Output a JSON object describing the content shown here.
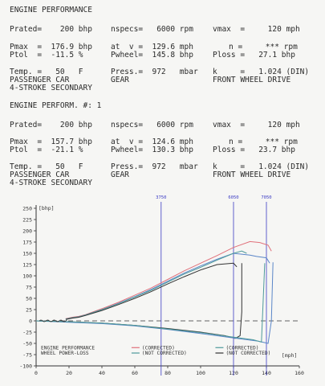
{
  "report1": {
    "title": "ENGINE PERFORMANCE",
    "rated": "Prated=    200 bhp",
    "nspecs": "nspecs=   6000 rpm",
    "vmax": "vmax  =     120 mph",
    "pmax": "Pmax  =  176.9 bhp",
    "ptol": "Ptol  =  -11.5 %",
    "at_v": "at  v =  129.6 mph",
    "pwheel": "Pwheel=  145.8 bhp",
    "n": "n =     *** rpm",
    "ploss": "Ploss =   27.1 bhp",
    "temp": "Temp. =   50   F",
    "car": "PASSENGER CAR",
    "stroke": "4-STROKE SECONDARY",
    "press": "Press.=  972   mbar",
    "gear": "GEAR",
    "k": "k     =   1.024 (DIN)",
    "drive": "FRONT WHEEL DRIVE"
  },
  "report2": {
    "title": "ENGINE PERFORM. #: 1",
    "rated": "Prated=    200 bhp",
    "nspecs": "nspecs=   6000 rpm",
    "vmax": "vmax  =     120 mph",
    "pmax": "Pmax  =  157.7 bhp",
    "ptol": "Ptol  =  -21.1 %",
    "at_v": "at  v =  124.6 mph",
    "pwheel": "Pwheel=  130.3 bhp",
    "n": "n =     *** rpm",
    "ploss": "Ploss =   23.7 bhp",
    "temp": "Temp. =   50   F",
    "car": "PASSENGER CAR",
    "stroke": "4-STROKE SECONDARY",
    "press": "Press.=  972   mbar",
    "gear": "GEAR",
    "k": "k     =   1.024 (DIN)",
    "drive": "FRONT WHEEL DRIVE"
  },
  "chart_data": {
    "type": "line",
    "title": "",
    "xlabel": "[mph]",
    "ylabel": "[bhp]",
    "xlim": [
      0,
      160
    ],
    "ylim": [
      -100,
      250
    ],
    "xticks": [
      0,
      20,
      40,
      60,
      80,
      100,
      120,
      140,
      160
    ],
    "yticks": [
      250,
      225,
      200,
      175,
      150,
      125,
      100,
      75,
      50,
      25,
      0,
      -25,
      -50,
      -75,
      -100
    ],
    "rpm_markers": [
      {
        "label": "3750",
        "x": 76
      },
      {
        "label": "6050",
        "x": 120
      },
      {
        "label": "7050",
        "x": 140
      }
    ],
    "legend": {
      "row1": "ENGINE PERFORMANCE",
      "row2": "WHEEL POWER-LOSS",
      "corrected": "(CORRECTED)",
      "not_corrected": "(NOT CORRECTED)"
    },
    "colors": {
      "red": "#e0707a",
      "teal": "#4e9a9a",
      "blue": "#5a86c8",
      "black": "#333333",
      "marker": "#3b3bc4"
    },
    "series": [
      {
        "color": "red",
        "x": [
          18,
          22,
          26,
          30,
          40,
          50,
          60,
          70,
          80,
          90,
          100,
          110,
          120,
          130,
          136,
          141,
          143
        ],
        "values": [
          5,
          8,
          10,
          14,
          27,
          41,
          57,
          73,
          92,
          111,
          128,
          145,
          163,
          176,
          174,
          168,
          155
        ]
      },
      {
        "color": "blue",
        "x": [
          18,
          22,
          26,
          30,
          40,
          50,
          60,
          70,
          80,
          90,
          100,
          110,
          120,
          130,
          134,
          140,
          142
        ],
        "values": [
          4,
          7,
          9,
          13,
          25,
          39,
          54,
          70,
          88,
          106,
          122,
          137,
          150,
          146,
          143,
          140,
          128
        ]
      },
      {
        "color": "teal",
        "x": [
          18,
          22,
          26,
          30,
          40,
          50,
          60,
          70,
          80,
          90,
          100,
          110,
          120,
          125,
          128
        ],
        "values": [
          4,
          7,
          9,
          13,
          25,
          38,
          53,
          68,
          86,
          104,
          119,
          135,
          150,
          155,
          150
        ]
      },
      {
        "color": "black",
        "x": [
          18,
          22,
          26,
          30,
          40,
          50,
          60,
          70,
          80,
          90,
          100,
          110,
          120,
          122
        ],
        "values": [
          3,
          6,
          8,
          12,
          23,
          36,
          50,
          65,
          82,
          98,
          113,
          125,
          128,
          120
        ]
      }
    ],
    "loss_curves": [
      {
        "color": "black",
        "x": [
          0,
          20,
          40,
          60,
          80,
          100,
          115,
          121,
          124,
          125,
          125
        ],
        "values": [
          0,
          -2,
          -5,
          -10,
          -17,
          -25,
          -33,
          -39,
          -33,
          20,
          128
        ]
      },
      {
        "color": "blue",
        "x": [
          0,
          20,
          40,
          60,
          80,
          100,
          120,
          135,
          141,
          143,
          144
        ],
        "values": [
          0,
          -3,
          -6,
          -11,
          -19,
          -28,
          -38,
          -45,
          -50,
          0,
          130
        ]
      },
      {
        "color": "teal",
        "x": [
          0,
          20,
          40,
          60,
          80,
          100,
          120,
          132,
          137,
          139
        ],
        "values": [
          0,
          -2,
          -5,
          -10,
          -18,
          -26,
          -36,
          -42,
          -47,
          128
        ]
      }
    ],
    "dashed_zero": true
  }
}
